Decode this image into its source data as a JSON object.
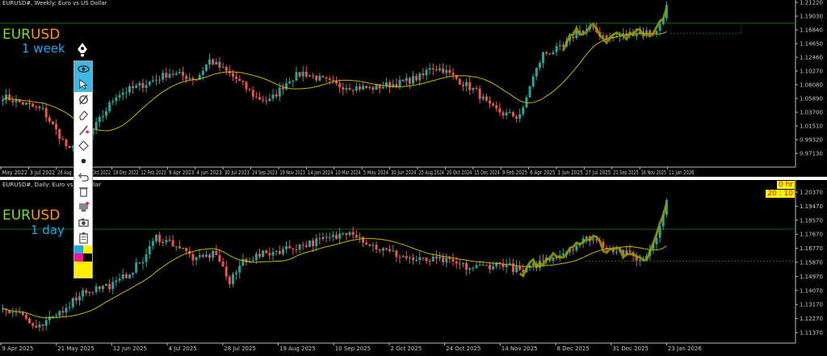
{
  "top_chart": {
    "title": "EURUSD#, Weekly:  Euro vs US Dollar",
    "label_symbol_a": "EUR",
    "label_symbol_b": "USD",
    "label_period": "1 week",
    "price_ticks": [
      "1.21220",
      "1.19030",
      "1.16840",
      "1.14650",
      "1.12460",
      "1.10270",
      "1.08080",
      "1.05890",
      "1.03700",
      "1.01510",
      "0.99320",
      "0.97130"
    ],
    "date_ticks": [
      "May 2022",
      "3 Jul 2022",
      "28 Aug 2022",
      "23 Oct 2022",
      "18 Dec 2022",
      "12 Feb 2023",
      "9 Apr 2023",
      "4 Jun 2023",
      "30 Jul 2023",
      "24 Sep 2023",
      "19 Nov 2023",
      "14 Jan 2024",
      "10 Mar 2024",
      "5 May 2024",
      "30 Jun 2024",
      "25 Aug 2024",
      "20 Oct 2024",
      "15 Dec 2024",
      "9 Feb 2025",
      "6 Apr 2025",
      "1 Jun 2025",
      "27 Jul 2025",
      "21 Sep 2025",
      "16 Nov 2025",
      "11 Jan 2026"
    ],
    "approx_closes": [
      [
        0,
        1.062
      ],
      [
        12,
        1.04
      ],
      [
        20,
        0.975
      ],
      [
        26,
        1.0
      ],
      [
        34,
        1.065
      ],
      [
        44,
        1.085
      ],
      [
        50,
        1.1
      ],
      [
        58,
        1.09
      ],
      [
        62,
        1.12
      ],
      [
        70,
        1.09
      ],
      [
        76,
        1.06
      ],
      [
        80,
        1.055
      ],
      [
        86,
        1.09
      ],
      [
        90,
        1.1
      ],
      [
        100,
        1.08
      ],
      [
        110,
        1.075
      ],
      [
        120,
        1.085
      ],
      [
        126,
        1.095
      ],
      [
        128,
        1.11
      ],
      [
        132,
        1.105
      ],
      [
        136,
        1.09
      ],
      [
        142,
        1.07
      ],
      [
        146,
        1.045
      ],
      [
        150,
        1.035
      ],
      [
        154,
        1.03
      ],
      [
        156,
        1.04
      ],
      [
        158,
        1.08
      ],
      [
        162,
        1.13
      ],
      [
        168,
        1.14
      ],
      [
        172,
        1.165
      ],
      [
        176,
        1.17
      ],
      [
        182,
        1.155
      ],
      [
        190,
        1.165
      ],
      [
        196,
        1.165
      ],
      [
        199,
        1.205
      ]
    ],
    "hline_price": 1.179
  },
  "bottom_chart": {
    "title": "EURUSD#, Daily:  Euro vs US Dollar",
    "label_symbol_a": "EUR",
    "label_symbol_b": "USD",
    "label_period": "1 day",
    "timer_hr": "0 hr",
    "timer_time": "20 : 10",
    "price_ticks": [
      "1.20370",
      "1.19470",
      "1.18570",
      "1.17670",
      "1.16770",
      "1.15870",
      "1.14970",
      "1.14070",
      "1.13170",
      "1.12270",
      "1.11370"
    ],
    "date_ticks": [
      "9 Apr 2025",
      "21 May 2025",
      "12 Jun 2025",
      "4 Jul 2025",
      "28 Jul 2025",
      "19 Aug 2025",
      "10 Sep 2025",
      "2 Oct 2025",
      "24 Oct 2025",
      "14 Nov 2025",
      "8 Dec 2025",
      "31 Dec 2025",
      "23 Jan 2026"
    ],
    "approx_closes": [
      [
        0,
        1.13
      ],
      [
        6,
        1.125
      ],
      [
        10,
        1.115
      ],
      [
        16,
        1.125
      ],
      [
        24,
        1.14
      ],
      [
        34,
        1.145
      ],
      [
        42,
        1.16
      ],
      [
        46,
        1.175
      ],
      [
        52,
        1.17
      ],
      [
        58,
        1.16
      ],
      [
        64,
        1.165
      ],
      [
        68,
        1.145
      ],
      [
        72,
        1.16
      ],
      [
        80,
        1.165
      ],
      [
        90,
        1.17
      ],
      [
        100,
        1.175
      ],
      [
        104,
        1.18
      ],
      [
        110,
        1.17
      ],
      [
        116,
        1.165
      ],
      [
        124,
        1.16
      ],
      [
        132,
        1.16
      ],
      [
        140,
        1.155
      ],
      [
        150,
        1.158
      ],
      [
        156,
        1.152
      ],
      [
        162,
        1.16
      ],
      [
        168,
        1.165
      ],
      [
        176,
        1.175
      ],
      [
        180,
        1.17
      ],
      [
        186,
        1.165
      ],
      [
        192,
        1.16
      ],
      [
        196,
        1.175
      ],
      [
        199,
        1.2
      ]
    ],
    "hline_price": 1.18,
    "dotted_price": 1.1595
  },
  "toolbar": {
    "items": [
      "eye-icon",
      "cursor-icon",
      "draw-mode-icon",
      "eraser-icon",
      "line-icon",
      "eraser-all-icon",
      "dot-icon",
      "undo-icon",
      "trash-icon",
      "template-icon",
      "screenshot-icon",
      "clipboard-icon"
    ],
    "palette": [
      "#1ea7e8",
      "#ffee00",
      "#ff1493",
      "#000000",
      "#ffee00"
    ]
  },
  "colors": {
    "bull": "#26a69a",
    "bear": "#ef5350",
    "ma": "#c8b400",
    "highlight": "#8fa000",
    "grid_line": "#0a6a0a"
  }
}
